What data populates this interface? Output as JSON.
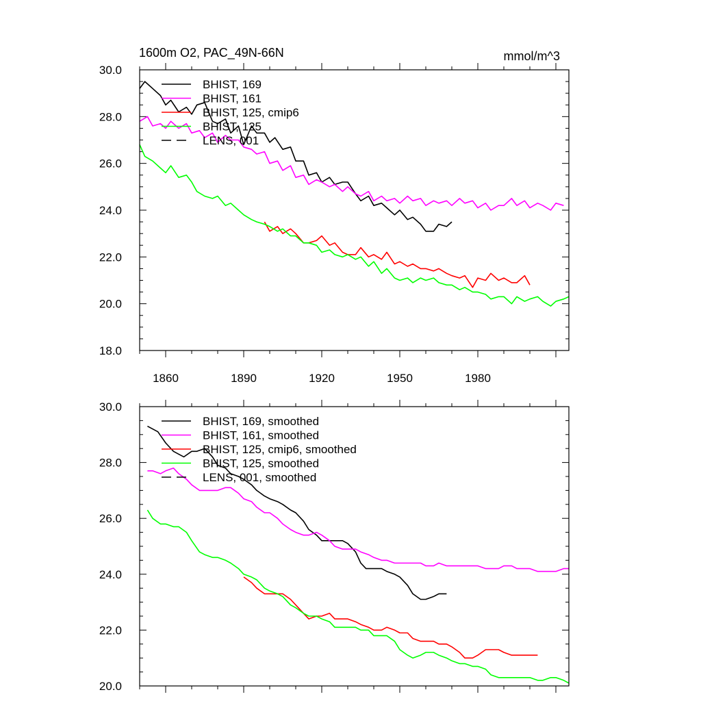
{
  "colors": {
    "black": "#000000",
    "magenta": "#ff00ff",
    "red": "#ff0000",
    "green": "#00ff00"
  },
  "chart_data": [
    {
      "type": "line",
      "title": "1600m O2, PAC_49N-66N",
      "units": "mmol/m^3",
      "xlim": [
        1850,
        2015
      ],
      "ylim": [
        18.0,
        30.0
      ],
      "xticks": [
        "1860",
        "1890",
        "1920",
        "1950",
        "1980"
      ],
      "yticks": [
        "18.0",
        "20.0",
        "22.0",
        "24.0",
        "26.0",
        "28.0",
        "30.0"
      ],
      "legend_position": "top-left",
      "series": [
        {
          "name": "BHIST, 169",
          "color": "black",
          "dash": false,
          "x": [
            1850,
            1852,
            1855,
            1858,
            1860,
            1862,
            1865,
            1868,
            1870,
            1872,
            1875,
            1878,
            1880,
            1883,
            1885,
            1888,
            1890,
            1893,
            1895,
            1898,
            1900,
            1902,
            1905,
            1908,
            1910,
            1913,
            1915,
            1918,
            1920,
            1923,
            1925,
            1928,
            1930,
            1933,
            1935,
            1938,
            1940,
            1943,
            1945,
            1948,
            1950,
            1953,
            1955,
            1958,
            1960,
            1963,
            1965,
            1968,
            1970
          ],
          "y": [
            29.2,
            29.5,
            29.2,
            28.9,
            28.5,
            28.7,
            28.2,
            28.4,
            28.1,
            28.5,
            28.6,
            27.8,
            27.7,
            27.9,
            27.3,
            27.6,
            26.8,
            27.6,
            27.3,
            27.3,
            26.9,
            27.1,
            26.6,
            26.7,
            26.1,
            26.1,
            25.5,
            25.6,
            25.2,
            25.4,
            25.1,
            25.2,
            25.2,
            24.7,
            24.4,
            24.6,
            24.2,
            24.3,
            24.1,
            23.8,
            24.0,
            23.6,
            23.7,
            23.4,
            23.1,
            23.1,
            23.4,
            23.3,
            23.5
          ]
        },
        {
          "name": "BHIST, 161",
          "color": "magenta",
          "dash": false,
          "x": [
            1850,
            1853,
            1855,
            1858,
            1860,
            1862,
            1865,
            1868,
            1870,
            1873,
            1875,
            1878,
            1880,
            1883,
            1885,
            1888,
            1890,
            1893,
            1895,
            1898,
            1900,
            1903,
            1905,
            1908,
            1910,
            1913,
            1915,
            1918,
            1920,
            1923,
            1925,
            1928,
            1930,
            1933,
            1935,
            1938,
            1940,
            1943,
            1945,
            1948,
            1950,
            1953,
            1955,
            1958,
            1960,
            1963,
            1965,
            1968,
            1970,
            1973,
            1975,
            1978,
            1980,
            1983,
            1985,
            1988,
            1990,
            1993,
            1995,
            1998,
            2000,
            2003,
            2005,
            2008,
            2010,
            2013
          ],
          "y": [
            27.8,
            28.0,
            27.6,
            27.7,
            27.5,
            27.8,
            27.5,
            27.7,
            27.3,
            27.4,
            27.1,
            27.3,
            26.9,
            27.2,
            27.0,
            27.0,
            26.7,
            26.6,
            26.4,
            26.5,
            26.0,
            26.1,
            25.7,
            25.9,
            25.4,
            25.5,
            25.1,
            25.3,
            25.2,
            25.0,
            25.1,
            24.8,
            25.0,
            24.7,
            24.6,
            24.8,
            24.4,
            24.6,
            24.4,
            24.5,
            24.3,
            24.6,
            24.4,
            24.5,
            24.2,
            24.4,
            24.3,
            24.4,
            24.2,
            24.5,
            24.3,
            24.4,
            24.1,
            24.3,
            24.0,
            24.2,
            24.2,
            24.5,
            24.2,
            24.4,
            24.1,
            24.3,
            24.2,
            24.0,
            24.3,
            24.2
          ]
        },
        {
          "name": "BHIST, 125, cmip6",
          "color": "red",
          "dash": false,
          "x": [
            1898,
            1900,
            1903,
            1905,
            1908,
            1910,
            1913,
            1915,
            1918,
            1920,
            1923,
            1925,
            1928,
            1930,
            1933,
            1935,
            1938,
            1940,
            1943,
            1945,
            1948,
            1950,
            1953,
            1955,
            1958,
            1960,
            1963,
            1965,
            1968,
            1970,
            1973,
            1975,
            1978,
            1980,
            1983,
            1985,
            1988,
            1990,
            1993,
            1995,
            1998,
            2000
          ],
          "y": [
            23.5,
            23.1,
            23.3,
            23.0,
            23.2,
            23.0,
            22.6,
            22.6,
            22.7,
            22.9,
            22.5,
            22.6,
            22.2,
            22.1,
            22.1,
            22.4,
            22.0,
            22.1,
            21.9,
            22.2,
            21.7,
            21.8,
            21.6,
            21.7,
            21.5,
            21.5,
            21.4,
            21.5,
            21.3,
            21.2,
            21.1,
            21.2,
            20.7,
            21.1,
            21.0,
            21.3,
            21.0,
            21.1,
            20.9,
            20.9,
            21.2,
            20.8
          ]
        },
        {
          "name": "BHIST, 125",
          "color": "green",
          "dash": false,
          "x": [
            1850,
            1852,
            1855,
            1858,
            1860,
            1862,
            1865,
            1868,
            1870,
            1872,
            1875,
            1878,
            1880,
            1883,
            1885,
            1888,
            1890,
            1893,
            1895,
            1898,
            1900,
            1903,
            1905,
            1908,
            1910,
            1913,
            1915,
            1918,
            1920,
            1923,
            1925,
            1928,
            1930,
            1933,
            1935,
            1938,
            1940,
            1943,
            1945,
            1948,
            1950,
            1953,
            1955,
            1958,
            1960,
            1963,
            1965,
            1968,
            1970,
            1973,
            1975,
            1978,
            1980,
            1983,
            1985,
            1988,
            1990,
            1993,
            1995,
            1998,
            2000,
            2003,
            2005,
            2008,
            2010,
            2013,
            2015
          ],
          "y": [
            26.8,
            26.3,
            26.1,
            25.8,
            25.6,
            25.9,
            25.4,
            25.5,
            25.2,
            24.8,
            24.6,
            24.5,
            24.6,
            24.2,
            24.3,
            24.0,
            23.8,
            23.6,
            23.5,
            23.4,
            23.3,
            23.1,
            23.2,
            22.9,
            22.9,
            22.6,
            22.6,
            22.5,
            22.2,
            22.3,
            22.1,
            22.0,
            22.1,
            21.9,
            22.0,
            21.6,
            21.8,
            21.3,
            21.5,
            21.1,
            21.0,
            21.1,
            20.9,
            21.1,
            21.0,
            21.1,
            20.9,
            20.8,
            20.8,
            20.6,
            20.7,
            20.5,
            20.5,
            20.4,
            20.2,
            20.3,
            20.3,
            20.0,
            20.3,
            20.1,
            20.2,
            20.3,
            20.1,
            19.9,
            20.1,
            20.2,
            20.3
          ]
        },
        {
          "name": "LENS, 001",
          "color": "black",
          "dash": true,
          "x": [],
          "y": []
        }
      ]
    },
    {
      "type": "line",
      "title": "",
      "units": "",
      "xlim": [
        1850,
        2015
      ],
      "ylim": [
        20.0,
        30.0
      ],
      "xticks": [],
      "yticks": [
        "20.0",
        "22.0",
        "24.0",
        "26.0",
        "28.0",
        "30.0"
      ],
      "legend_position": "top-left",
      "series": [
        {
          "name": "BHIST, 169, smoothed",
          "color": "black",
          "dash": false,
          "x": [
            1853,
            1857,
            1860,
            1863,
            1865,
            1867,
            1870,
            1872,
            1875,
            1878,
            1880,
            1883,
            1885,
            1888,
            1890,
            1893,
            1895,
            1898,
            1900,
            1903,
            1905,
            1908,
            1910,
            1913,
            1915,
            1918,
            1920,
            1923,
            1925,
            1928,
            1930,
            1933,
            1935,
            1937,
            1940,
            1943,
            1945,
            1948,
            1950,
            1953,
            1955,
            1958,
            1960,
            1963,
            1965,
            1968
          ],
          "y": [
            29.3,
            29.1,
            28.7,
            28.4,
            28.3,
            28.2,
            28.4,
            28.4,
            28.5,
            28.2,
            27.9,
            27.8,
            27.6,
            27.5,
            27.4,
            27.2,
            27.0,
            26.8,
            26.7,
            26.6,
            26.5,
            26.3,
            26.2,
            25.9,
            25.6,
            25.4,
            25.2,
            25.2,
            25.2,
            25.2,
            25.1,
            24.8,
            24.4,
            24.2,
            24.2,
            24.2,
            24.1,
            24.0,
            23.9,
            23.6,
            23.3,
            23.1,
            23.1,
            23.2,
            23.3,
            23.3
          ]
        },
        {
          "name": "BHIST, 161, smoothed",
          "color": "magenta",
          "dash": false,
          "x": [
            1853,
            1855,
            1858,
            1860,
            1863,
            1865,
            1868,
            1870,
            1873,
            1875,
            1878,
            1880,
            1883,
            1885,
            1888,
            1890,
            1893,
            1895,
            1898,
            1900,
            1903,
            1905,
            1908,
            1910,
            1913,
            1915,
            1918,
            1920,
            1923,
            1925,
            1928,
            1930,
            1933,
            1935,
            1938,
            1940,
            1943,
            1945,
            1948,
            1950,
            1953,
            1955,
            1958,
            1960,
            1963,
            1965,
            1968,
            1970,
            1973,
            1975,
            1978,
            1980,
            1983,
            1985,
            1988,
            1990,
            1993,
            1995,
            1998,
            2000,
            2003,
            2005,
            2008,
            2010,
            2013,
            2015
          ],
          "y": [
            27.7,
            27.7,
            27.6,
            27.7,
            27.8,
            27.6,
            27.4,
            27.2,
            27.0,
            27.0,
            27.0,
            27.0,
            27.1,
            27.1,
            26.9,
            26.7,
            26.6,
            26.4,
            26.2,
            26.2,
            26.0,
            25.8,
            25.6,
            25.5,
            25.4,
            25.4,
            25.5,
            25.4,
            25.2,
            25.0,
            24.9,
            24.9,
            24.9,
            24.8,
            24.7,
            24.6,
            24.5,
            24.5,
            24.4,
            24.4,
            24.4,
            24.4,
            24.4,
            24.3,
            24.3,
            24.4,
            24.3,
            24.3,
            24.3,
            24.3,
            24.3,
            24.3,
            24.2,
            24.2,
            24.2,
            24.3,
            24.3,
            24.2,
            24.2,
            24.2,
            24.1,
            24.1,
            24.1,
            24.1,
            24.2,
            24.2
          ]
        },
        {
          "name": "BHIST, 125, cmip6, smoothed",
          "color": "red",
          "dash": false,
          "x": [
            1890,
            1893,
            1895,
            1898,
            1900,
            1903,
            1905,
            1908,
            1910,
            1913,
            1915,
            1918,
            1920,
            1923,
            1925,
            1928,
            1930,
            1933,
            1935,
            1938,
            1940,
            1943,
            1945,
            1948,
            1950,
            1953,
            1955,
            1958,
            1960,
            1963,
            1965,
            1968,
            1970,
            1973,
            1975,
            1978,
            1980,
            1983,
            1985,
            1988,
            1990,
            1993,
            1995,
            1998,
            2000,
            2003
          ],
          "y": [
            23.9,
            23.7,
            23.5,
            23.3,
            23.3,
            23.3,
            23.3,
            23.1,
            22.9,
            22.6,
            22.4,
            22.5,
            22.5,
            22.6,
            22.4,
            22.4,
            22.4,
            22.3,
            22.2,
            22.1,
            22.0,
            22.0,
            22.1,
            22.0,
            21.9,
            21.9,
            21.7,
            21.6,
            21.6,
            21.6,
            21.5,
            21.5,
            21.4,
            21.2,
            21.0,
            21.0,
            21.1,
            21.3,
            21.3,
            21.3,
            21.2,
            21.1,
            21.1,
            21.1,
            21.1,
            21.1
          ]
        },
        {
          "name": "BHIST, 125, smoothed",
          "color": "green",
          "dash": false,
          "x": [
            1853,
            1855,
            1858,
            1860,
            1863,
            1865,
            1868,
            1870,
            1873,
            1875,
            1878,
            1880,
            1883,
            1885,
            1888,
            1890,
            1893,
            1895,
            1898,
            1900,
            1903,
            1905,
            1908,
            1910,
            1913,
            1915,
            1918,
            1920,
            1923,
            1925,
            1928,
            1930,
            1933,
            1935,
            1938,
            1940,
            1943,
            1945,
            1948,
            1950,
            1953,
            1955,
            1958,
            1960,
            1963,
            1965,
            1968,
            1970,
            1973,
            1975,
            1978,
            1980,
            1983,
            1985,
            1988,
            1990,
            1993,
            1995,
            1998,
            2000,
            2003,
            2005,
            2008,
            2010,
            2013,
            2015
          ],
          "y": [
            26.3,
            26.0,
            25.8,
            25.8,
            25.7,
            25.7,
            25.5,
            25.2,
            24.8,
            24.7,
            24.6,
            24.6,
            24.5,
            24.4,
            24.2,
            24.0,
            23.9,
            23.8,
            23.5,
            23.4,
            23.3,
            23.2,
            22.9,
            22.8,
            22.6,
            22.5,
            22.5,
            22.4,
            22.3,
            22.1,
            22.1,
            22.1,
            22.1,
            22.0,
            22.0,
            21.8,
            21.8,
            21.8,
            21.6,
            21.3,
            21.1,
            21.0,
            21.1,
            21.2,
            21.2,
            21.1,
            21.0,
            20.9,
            20.8,
            20.8,
            20.7,
            20.7,
            20.6,
            20.4,
            20.3,
            20.3,
            20.3,
            20.3,
            20.3,
            20.3,
            20.2,
            20.2,
            20.3,
            20.3,
            20.2,
            20.1
          ]
        },
        {
          "name": "LENS, 001, smoothed",
          "color": "black",
          "dash": true,
          "x": [],
          "y": []
        }
      ]
    }
  ]
}
